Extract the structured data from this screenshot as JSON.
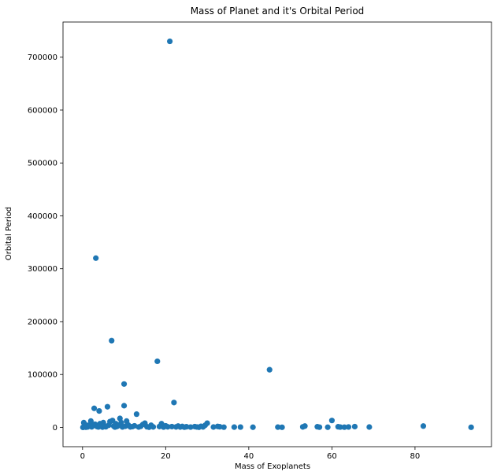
{
  "chart_data": {
    "type": "scatter",
    "title": "Mass of Planet and it's Orbital Period",
    "xlabel": "Mass of Exoplanets",
    "ylabel": "Orbital Period",
    "xlim": [
      -4.7,
      98.4
    ],
    "ylim": [
      -36500,
      766500
    ],
    "xticks": [
      0,
      20,
      40,
      60,
      80
    ],
    "yticks": [
      0,
      100000,
      200000,
      300000,
      400000,
      500000,
      600000,
      700000
    ],
    "grid": false,
    "legend": "none",
    "marker_color": "#1f77b4",
    "series": [
      {
        "points": [
          [
            0.1,
            2
          ],
          [
            0.2,
            500
          ],
          [
            0.3,
            9000
          ],
          [
            0.5,
            1500
          ],
          [
            0.8,
            300
          ],
          [
            1.0,
            4000
          ],
          [
            1.2,
            800
          ],
          [
            1.5,
            2500
          ],
          [
            1.8,
            5000
          ],
          [
            2.0,
            12000
          ],
          [
            2.2,
            1000
          ],
          [
            2.5,
            3000
          ],
          [
            2.8,
            36000
          ],
          [
            3.0,
            6000
          ],
          [
            3.2,
            320000
          ],
          [
            3.5,
            1500
          ],
          [
            3.8,
            800
          ],
          [
            4.0,
            31000
          ],
          [
            4.2,
            7000
          ],
          [
            4.5,
            2000
          ],
          [
            4.8,
            500
          ],
          [
            5.0,
            9000
          ],
          [
            5.3,
            3000
          ],
          [
            5.6,
            1200
          ],
          [
            6.0,
            39000
          ],
          [
            6.3,
            4000
          ],
          [
            6.6,
            11000
          ],
          [
            7.0,
            164000
          ],
          [
            7.2,
            13000
          ],
          [
            7.5,
            2500
          ],
          [
            7.8,
            600
          ],
          [
            8.0,
            7000
          ],
          [
            8.3,
            1800
          ],
          [
            8.6,
            3500
          ],
          [
            9.0,
            17000
          ],
          [
            9.3,
            9000
          ],
          [
            9.6,
            800
          ],
          [
            10.0,
            82000
          ],
          [
            10.0,
            41000
          ],
          [
            10.3,
            2200
          ],
          [
            10.6,
            12000
          ],
          [
            11.0,
            4500
          ],
          [
            11.5,
            900
          ],
          [
            12.0,
            1500
          ],
          [
            12.5,
            3000
          ],
          [
            13.0,
            25000
          ],
          [
            13.5,
            700
          ],
          [
            14.0,
            2000
          ],
          [
            14.5,
            5500
          ],
          [
            15.0,
            8000
          ],
          [
            15.5,
            1200
          ],
          [
            16.0,
            300
          ],
          [
            16.5,
            4000
          ],
          [
            17.0,
            900
          ],
          [
            18.0,
            125000
          ],
          [
            18.5,
            1600
          ],
          [
            19.0,
            7000
          ],
          [
            19.5,
            600
          ],
          [
            20.0,
            3000
          ],
          [
            20.5,
            1100
          ],
          [
            21.0,
            730000
          ],
          [
            21.5,
            1500
          ],
          [
            22.0,
            47000
          ],
          [
            22.5,
            900
          ],
          [
            23.0,
            2500
          ],
          [
            23.5,
            700
          ],
          [
            24.0,
            1800
          ],
          [
            24.5,
            400
          ],
          [
            25.0,
            1200
          ],
          [
            26.0,
            600
          ],
          [
            27.0,
            1500
          ],
          [
            27.5,
            800
          ],
          [
            28.0,
            300
          ],
          [
            28.5,
            2000
          ],
          [
            29.0,
            900
          ],
          [
            29.5,
            4000
          ],
          [
            30.0,
            8000
          ],
          [
            31.5,
            700
          ],
          [
            32.5,
            1800
          ],
          [
            33.0,
            1200
          ],
          [
            34.0,
            400
          ],
          [
            36.5,
            500
          ],
          [
            38.0,
            600
          ],
          [
            41.0,
            300
          ],
          [
            45.0,
            109000
          ],
          [
            47.0,
            500
          ],
          [
            48.0,
            200
          ],
          [
            53.0,
            900
          ],
          [
            53.5,
            2500
          ],
          [
            56.5,
            1200
          ],
          [
            57.0,
            400
          ],
          [
            59.0,
            300
          ],
          [
            60.0,
            13000
          ],
          [
            61.5,
            1200
          ],
          [
            62.0,
            600
          ],
          [
            63.0,
            400
          ],
          [
            64.0,
            800
          ],
          [
            65.5,
            1500
          ],
          [
            69.0,
            700
          ],
          [
            82.0,
            2500
          ],
          [
            93.5,
            200
          ]
        ]
      }
    ]
  }
}
